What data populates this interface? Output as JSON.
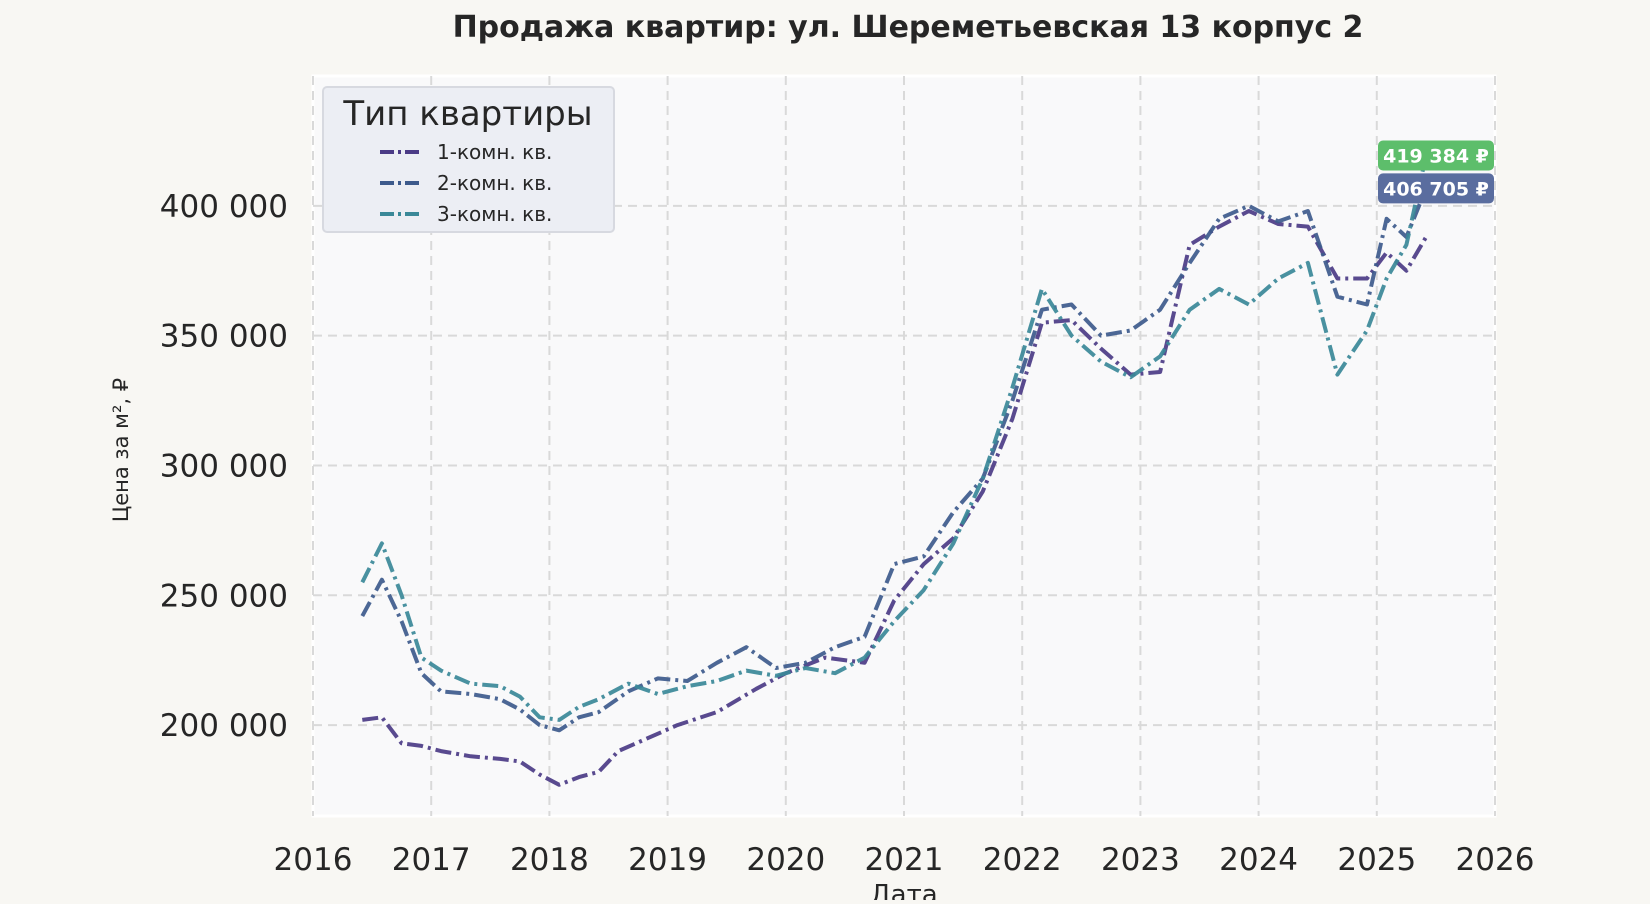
{
  "chart_data": {
    "type": "line",
    "title": "Продажа квартир: ул. Шереметьевская 13 корпус 2",
    "xlabel": "Дата",
    "ylabel": "Цена за м², ₽",
    "x_range": [
      "2016-01-01",
      "2026-01-01"
    ],
    "ylim": [
      165000,
      450000
    ],
    "x_ticks": [
      "2016",
      "2017",
      "2018",
      "2019",
      "2020",
      "2021",
      "2022",
      "2023",
      "2024",
      "2025",
      "2026"
    ],
    "x_tick_dates": [
      "2016-01-01",
      "2017-01-01",
      "2018-01-01",
      "2019-01-01",
      "2020-01-01",
      "2021-01-01",
      "2022-01-01",
      "2023-01-01",
      "2024-01-01",
      "2025-01-01",
      "2026-01-01"
    ],
    "y_ticks": [
      200000,
      250000,
      300000,
      350000,
      400000
    ],
    "y_tick_labels": [
      "200 000",
      "250 000",
      "300 000",
      "350 000",
      "400 000"
    ],
    "grid": true,
    "legend": {
      "title": "Тип квартиры",
      "placement": "top-left"
    },
    "series": [
      {
        "name": "1-комн. кв.",
        "color": "#4b3b86",
        "points": [
          [
            "2016-06",
            202000
          ],
          [
            "2016-08",
            203000
          ],
          [
            "2016-10",
            193000
          ],
          [
            "2016-12",
            192000
          ],
          [
            "2017-02",
            190000
          ],
          [
            "2017-05",
            188000
          ],
          [
            "2017-08",
            187000
          ],
          [
            "2017-10",
            186000
          ],
          [
            "2017-12",
            181000
          ],
          [
            "2018-02",
            177000
          ],
          [
            "2018-04",
            180000
          ],
          [
            "2018-06",
            182000
          ],
          [
            "2018-08",
            190000
          ],
          [
            "2018-11",
            195000
          ],
          [
            "2019-02",
            200000
          ],
          [
            "2019-06",
            205000
          ],
          [
            "2019-10",
            214000
          ],
          [
            "2020-01",
            220000
          ],
          [
            "2020-05",
            226000
          ],
          [
            "2020-09",
            224000
          ],
          [
            "2020-12",
            248000
          ],
          [
            "2021-03",
            262000
          ],
          [
            "2021-06",
            272000
          ],
          [
            "2021-09",
            290000
          ],
          [
            "2021-12",
            318000
          ],
          [
            "2022-03",
            355000
          ],
          [
            "2022-06",
            356000
          ],
          [
            "2022-09",
            345000
          ],
          [
            "2022-12",
            335000
          ],
          [
            "2023-03",
            336000
          ],
          [
            "2023-06",
            385000
          ],
          [
            "2023-09",
            392000
          ],
          [
            "2023-12",
            398000
          ],
          [
            "2024-03",
            393000
          ],
          [
            "2024-06",
            392000
          ],
          [
            "2024-09",
            372000
          ],
          [
            "2024-12",
            372000
          ],
          [
            "2025-02",
            382000
          ],
          [
            "2025-04",
            375000
          ],
          [
            "2025-06",
            388000
          ]
        ]
      },
      {
        "name": "2-комн. кв.",
        "color": "#3d5a8c",
        "points": [
          [
            "2016-06",
            242000
          ],
          [
            "2016-08",
            256000
          ],
          [
            "2016-10",
            240000
          ],
          [
            "2016-12",
            220000
          ],
          [
            "2017-02",
            213000
          ],
          [
            "2017-05",
            212000
          ],
          [
            "2017-08",
            210000
          ],
          [
            "2017-10",
            206000
          ],
          [
            "2017-12",
            200000
          ],
          [
            "2018-02",
            198000
          ],
          [
            "2018-04",
            203000
          ],
          [
            "2018-06",
            205000
          ],
          [
            "2018-09",
            213000
          ],
          [
            "2018-12",
            218000
          ],
          [
            "2019-03",
            217000
          ],
          [
            "2019-06",
            224000
          ],
          [
            "2019-09",
            230000
          ],
          [
            "2019-12",
            222000
          ],
          [
            "2020-03",
            224000
          ],
          [
            "2020-06",
            230000
          ],
          [
            "2020-09",
            234000
          ],
          [
            "2020-12",
            262000
          ],
          [
            "2021-03",
            265000
          ],
          [
            "2021-06",
            282000
          ],
          [
            "2021-09",
            295000
          ],
          [
            "2021-12",
            325000
          ],
          [
            "2022-03",
            360000
          ],
          [
            "2022-06",
            362000
          ],
          [
            "2022-09",
            350000
          ],
          [
            "2022-12",
            352000
          ],
          [
            "2023-03",
            360000
          ],
          [
            "2023-06",
            378000
          ],
          [
            "2023-09",
            395000
          ],
          [
            "2023-12",
            400000
          ],
          [
            "2024-03",
            394000
          ],
          [
            "2024-06",
            398000
          ],
          [
            "2024-09",
            365000
          ],
          [
            "2024-12",
            362000
          ],
          [
            "2025-02",
            395000
          ],
          [
            "2025-04",
            388000
          ],
          [
            "2025-06",
            406705
          ]
        ]
      },
      {
        "name": "3-комн. кв.",
        "color": "#3a8898",
        "points": [
          [
            "2016-06",
            255000
          ],
          [
            "2016-08",
            270000
          ],
          [
            "2016-10",
            250000
          ],
          [
            "2016-12",
            226000
          ],
          [
            "2017-02",
            221000
          ],
          [
            "2017-05",
            216000
          ],
          [
            "2017-08",
            215000
          ],
          [
            "2017-10",
            211000
          ],
          [
            "2017-12",
            203000
          ],
          [
            "2018-02",
            202000
          ],
          [
            "2018-04",
            207000
          ],
          [
            "2018-06",
            210000
          ],
          [
            "2018-09",
            216000
          ],
          [
            "2018-12",
            212000
          ],
          [
            "2019-03",
            215000
          ],
          [
            "2019-06",
            217000
          ],
          [
            "2019-09",
            221000
          ],
          [
            "2019-12",
            219000
          ],
          [
            "2020-03",
            222000
          ],
          [
            "2020-06",
            220000
          ],
          [
            "2020-09",
            226000
          ],
          [
            "2020-12",
            240000
          ],
          [
            "2021-03",
            252000
          ],
          [
            "2021-06",
            270000
          ],
          [
            "2021-09",
            295000
          ],
          [
            "2021-12",
            330000
          ],
          [
            "2022-03",
            368000
          ],
          [
            "2022-06",
            350000
          ],
          [
            "2022-09",
            340000
          ],
          [
            "2022-12",
            334000
          ],
          [
            "2023-03",
            342000
          ],
          [
            "2023-06",
            360000
          ],
          [
            "2023-09",
            368000
          ],
          [
            "2023-12",
            362000
          ],
          [
            "2024-03",
            372000
          ],
          [
            "2024-06",
            378000
          ],
          [
            "2024-09",
            335000
          ],
          [
            "2024-12",
            352000
          ],
          [
            "2025-02",
            372000
          ],
          [
            "2025-04",
            385000
          ],
          [
            "2025-06",
            419384
          ]
        ]
      }
    ],
    "annotations": [
      {
        "text": "419 384 ₽",
        "series": "3-комн. кв.",
        "value": 419384,
        "color": "#5dbe6b"
      },
      {
        "text": "406 705 ₽",
        "series": "2-комн. кв.",
        "value": 406705,
        "color": "#5a6d9f"
      }
    ]
  }
}
